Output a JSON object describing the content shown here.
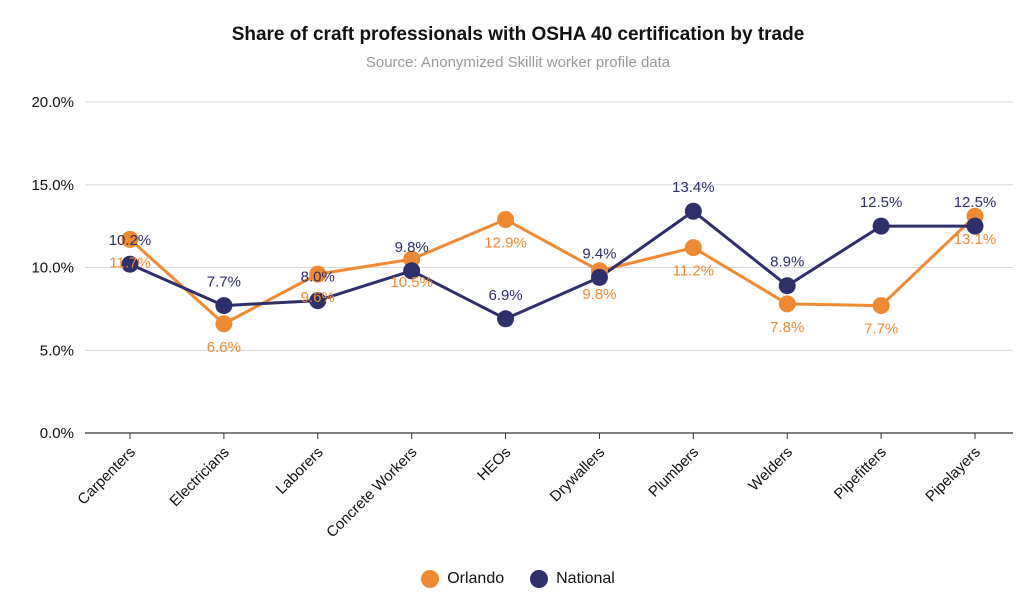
{
  "chart_data": {
    "type": "line",
    "title": "Share of craft professionals with OSHA 40 certification by trade",
    "subtitle": "Source: Anonymized Skillit worker profile data",
    "xlabel": "",
    "ylabel": "",
    "ylim": [
      0,
      20
    ],
    "yticks": [
      0,
      5,
      10,
      15,
      20
    ],
    "ytick_labels": [
      "0.0%",
      "5.0%",
      "10.0%",
      "15.0%",
      "20.0%"
    ],
    "grid": true,
    "legend_position": "bottom-center",
    "categories": [
      "Carpenters",
      "Electricians",
      "Laborers",
      "Concrete Workers",
      "HEOs",
      "Drywallers",
      "Plumbers",
      "Welders",
      "Pipefitters",
      "Pipelayers"
    ],
    "series": [
      {
        "name": "Orlando",
        "color": "#f08a32",
        "values": [
          11.7,
          6.6,
          9.6,
          10.5,
          12.9,
          9.8,
          11.2,
          7.8,
          7.7,
          13.1
        ],
        "labels": [
          "11.7%",
          "6.6%",
          "9.6%",
          "10.5%",
          "12.9%",
          "9.8%",
          "11.2%",
          "7.8%",
          "7.7%",
          "13.1%"
        ],
        "label_pos": [
          "below",
          "below",
          "below",
          "below",
          "below",
          "below",
          "below",
          "below",
          "below",
          "below"
        ]
      },
      {
        "name": "National",
        "color": "#2f2f6b",
        "values": [
          10.2,
          7.7,
          8.0,
          9.8,
          6.9,
          9.4,
          13.4,
          8.9,
          12.5,
          12.5
        ],
        "labels": [
          "10.2%",
          "7.7%",
          "8.0%",
          "9.8%",
          "6.9%",
          "9.4%",
          "13.4%",
          "8.9%",
          "12.5%",
          "12.5%"
        ],
        "label_pos": [
          "above",
          "above",
          "above",
          "above",
          "above",
          "above",
          "above",
          "above",
          "above",
          "above"
        ]
      }
    ]
  }
}
